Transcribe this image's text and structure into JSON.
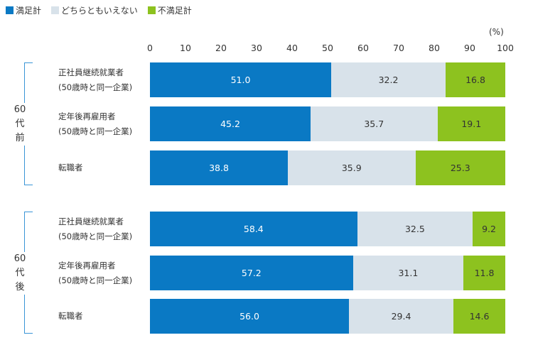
{
  "legend": [
    {
      "label": "満足計",
      "color": "#0a79c4"
    },
    {
      "label": "どちらともいえない",
      "color": "#d8e2ea"
    },
    {
      "label": "不満足計",
      "color": "#8dc21f"
    }
  ],
  "unit_label": "(%)",
  "chart_data": {
    "type": "bar",
    "orientation": "horizontal",
    "stacked": true,
    "xlim": [
      0,
      100
    ],
    "x_ticks": [
      "0",
      "10",
      "20",
      "30",
      "40",
      "50",
      "60",
      "70",
      "80",
      "90",
      "100"
    ],
    "series_names": [
      "満足計",
      "どちらともいえない",
      "不満足計"
    ],
    "colors": [
      "#0a79c4",
      "#d8e2ea",
      "#8dc21f"
    ],
    "groups": [
      {
        "label": "60代前半",
        "rows": [
          {
            "label_lines": [
              "正社員継続就業者",
              "(50歳時と同一企業)"
            ],
            "values": [
              51.0,
              32.2,
              16.8
            ],
            "value_labels": [
              "51.0",
              "32.2",
              "16.8"
            ]
          },
          {
            "label_lines": [
              "定年後再雇用者",
              "(50歳時と同一企業)"
            ],
            "values": [
              45.2,
              35.7,
              19.1
            ],
            "value_labels": [
              "45.2",
              "35.7",
              "19.1"
            ]
          },
          {
            "label_lines": [
              "転職者"
            ],
            "values": [
              38.8,
              35.9,
              25.3
            ],
            "value_labels": [
              "38.8",
              "35.9",
              "25.3"
            ]
          }
        ]
      },
      {
        "label": "60代後半",
        "rows": [
          {
            "label_lines": [
              "正社員継続就業者",
              "(50歳時と同一企業)"
            ],
            "values": [
              58.4,
              32.5,
              9.2
            ],
            "value_labels": [
              "58.4",
              "32.5",
              "9.2"
            ]
          },
          {
            "label_lines": [
              "定年後再雇用者",
              "(50歳時と同一企業)"
            ],
            "values": [
              57.2,
              31.1,
              11.8
            ],
            "value_labels": [
              "57.2",
              "31.1",
              "11.8"
            ]
          },
          {
            "label_lines": [
              "転職者"
            ],
            "values": [
              56.0,
              29.4,
              14.6
            ],
            "value_labels": [
              "56.0",
              "29.4",
              "14.6"
            ]
          }
        ]
      }
    ]
  }
}
